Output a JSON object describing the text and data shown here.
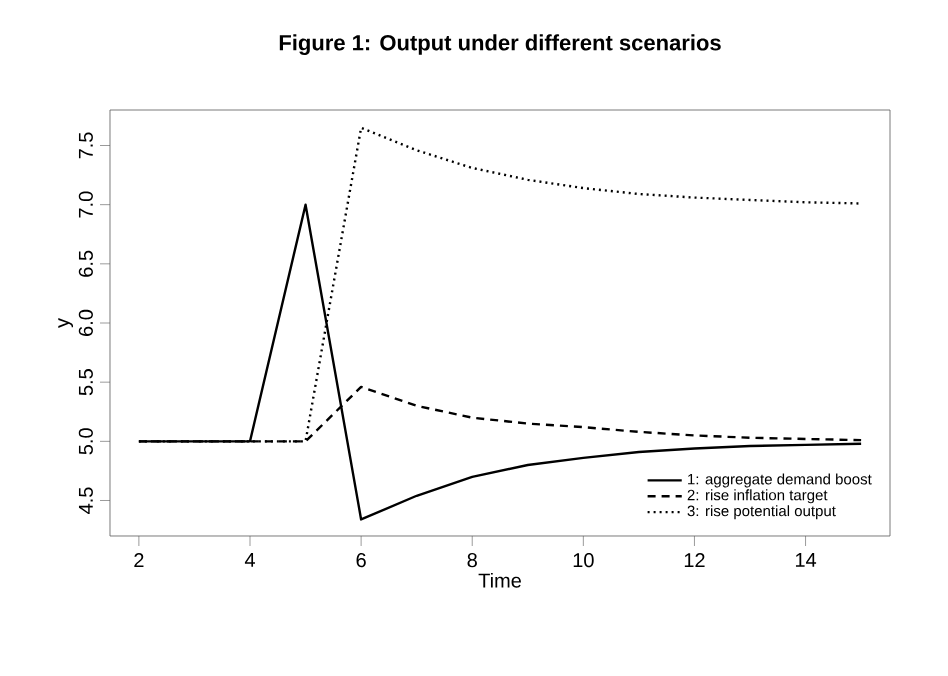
{
  "chart_data": {
    "type": "line",
    "title": "Figure 1: Output under different scenarios",
    "xlabel": "Time",
    "ylabel": "y",
    "x": [
      2,
      3,
      4,
      5,
      6,
      7,
      8,
      9,
      10,
      11,
      12,
      13,
      14,
      15
    ],
    "series": [
      {
        "name": "1: aggregate demand boost",
        "color": "#000000",
        "line_style": "solid",
        "values": [
          5,
          5,
          5,
          7.0,
          4.34,
          4.54,
          4.7,
          4.8,
          4.86,
          4.91,
          4.94,
          4.96,
          4.97,
          4.98
        ]
      },
      {
        "name": "2: rise inflation target",
        "color": "#000000",
        "line_style": "dashed",
        "values": [
          5,
          5,
          5,
          5,
          5.46,
          5.3,
          5.2,
          5.15,
          5.12,
          5.08,
          5.05,
          5.03,
          5.02,
          5.01
        ]
      },
      {
        "name": "3: rise potential output",
        "color": "#000000",
        "line_style": "dotted",
        "values": [
          5,
          5,
          5,
          5,
          7.65,
          7.46,
          7.31,
          7.21,
          7.14,
          7.09,
          7.06,
          7.04,
          7.02,
          7.01
        ]
      }
    ],
    "xlim": [
      1.48,
      15.52
    ],
    "ylim": [
      4.2,
      7.8
    ],
    "xticks": [
      2,
      4,
      6,
      8,
      10,
      12,
      14
    ],
    "yticks": [
      4.5,
      {
        "value": 5,
        "label": "5.0"
      },
      5.5,
      {
        "value": 6,
        "label": "6.0"
      },
      6.5,
      {
        "value": 7,
        "label": "7.0"
      },
      7.5
    ],
    "grid": false,
    "legend": "bottom right",
    "marker": "none"
  }
}
